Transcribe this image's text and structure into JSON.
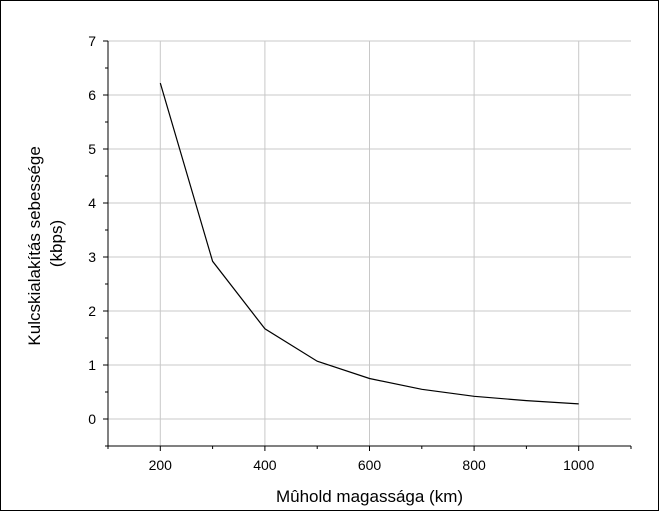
{
  "chart_data": {
    "type": "line",
    "xlabel": "Mûhold magassága  (km)",
    "ylabel_lines": [
      "Kulcskialakítás sebessége",
      "(kbps)"
    ],
    "xlim": [
      100,
      1100
    ],
    "ylim": [
      -0.5,
      7
    ],
    "x_ticks": [
      200,
      400,
      600,
      800,
      1000
    ],
    "x_tick_labels": [
      "200",
      "400",
      "600",
      "800",
      "1000"
    ],
    "y_ticks": [
      0,
      1,
      2,
      3,
      4,
      5,
      6,
      7
    ],
    "y_tick_labels": [
      "0",
      "1",
      "2",
      "3",
      "4",
      "5",
      "6",
      "7"
    ],
    "grid": true,
    "series": [
      {
        "color": "#000000",
        "x": [
          200,
          300,
          400,
          500,
          600,
          700,
          800,
          900,
          1000
        ],
        "y": [
          6.22,
          2.92,
          1.67,
          1.07,
          0.75,
          0.55,
          0.42,
          0.34,
          0.28
        ]
      }
    ]
  }
}
